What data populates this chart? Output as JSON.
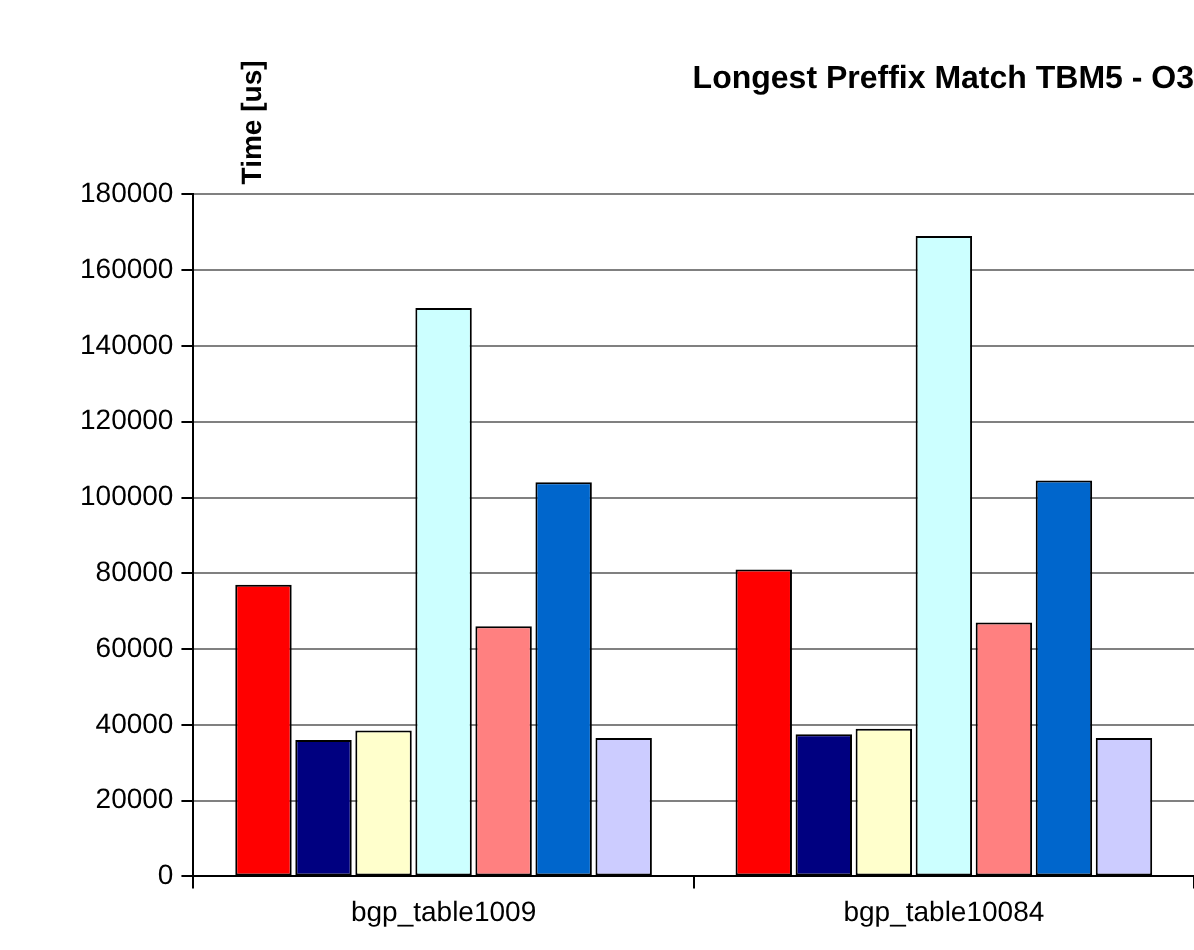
{
  "chart_data": {
    "type": "bar",
    "title": "Longest Preffix Match TBM5 - O3",
    "ylabel": "Time [us]",
    "categories": [
      "bgp_table1009",
      "bgp_table10084"
    ],
    "series": [
      {
        "color": "#ff0000",
        "values": [
          77000,
          81000
        ]
      },
      {
        "color": "#000080",
        "values": [
          36000,
          37500
        ]
      },
      {
        "color": "#ffffcc",
        "values": [
          38500,
          39000
        ]
      },
      {
        "color": "#ccffff",
        "values": [
          150000,
          169000
        ]
      },
      {
        "color": "#ff8080",
        "values": [
          66000,
          67000
        ]
      },
      {
        "color": "#0066cc",
        "values": [
          104000,
          104500
        ]
      },
      {
        "color": "#ccccff",
        "values": [
          36500,
          36500
        ]
      }
    ],
    "ylim": [
      0,
      180000
    ],
    "yticks": [
      0,
      20000,
      40000,
      60000,
      80000,
      100000,
      120000,
      140000,
      160000,
      180000
    ],
    "grid": "y",
    "legend": false
  }
}
